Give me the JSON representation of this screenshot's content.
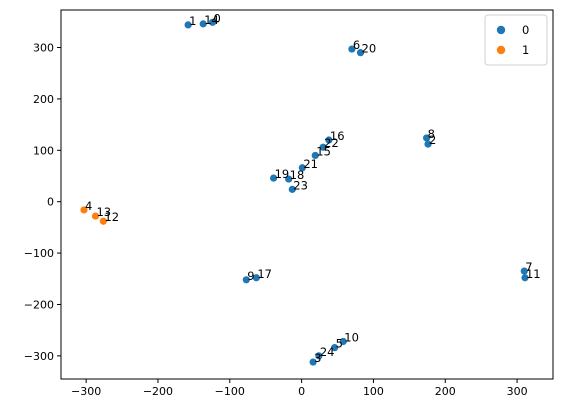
{
  "chart_data": {
    "type": "scatter",
    "title": "",
    "xlabel": "",
    "ylabel": "",
    "xlim": [
      -335,
      350
    ],
    "ylim": [
      -345,
      373
    ],
    "xticks": [
      -300,
      -200,
      -100,
      0,
      100,
      200,
      300
    ],
    "yticks": [
      -300,
      -200,
      -100,
      0,
      100,
      200,
      300
    ],
    "xtick_labels": [
      "−300",
      "−200",
      "−100",
      "0",
      "100",
      "200",
      "300"
    ],
    "ytick_labels": [
      "−300",
      "−200",
      "−100",
      "0",
      "100",
      "200",
      "300"
    ],
    "grid": false,
    "legend_position": "top-right",
    "series": [
      {
        "name": "0",
        "color": "#1f77b4",
        "points": [
          {
            "label": "0",
            "x": -124,
            "y": 349
          },
          {
            "label": "1",
            "x": -158,
            "y": 344
          },
          {
            "label": "14",
            "x": -137,
            "y": 346
          },
          {
            "label": "6",
            "x": 70,
            "y": 297
          },
          {
            "label": "20",
            "x": 82,
            "y": 290
          },
          {
            "label": "8",
            "x": 174,
            "y": 124
          },
          {
            "label": "2",
            "x": 176,
            "y": 112
          },
          {
            "label": "16",
            "x": 38,
            "y": 120
          },
          {
            "label": "22",
            "x": 30,
            "y": 106
          },
          {
            "label": "15",
            "x": 19,
            "y": 90
          },
          {
            "label": "21",
            "x": 1,
            "y": 66
          },
          {
            "label": "19",
            "x": -39,
            "y": 46
          },
          {
            "label": "18",
            "x": -18,
            "y": 44
          },
          {
            "label": "23",
            "x": -13,
            "y": 24
          },
          {
            "label": "7",
            "x": 310,
            "y": -135
          },
          {
            "label": "11",
            "x": 311,
            "y": -148
          },
          {
            "label": "9",
            "x": -77,
            "y": -152
          },
          {
            "label": "17",
            "x": -63,
            "y": -148
          },
          {
            "label": "10",
            "x": 58,
            "y": -272
          },
          {
            "label": "5",
            "x": 46,
            "y": -284
          },
          {
            "label": "24",
            "x": 24,
            "y": -300
          },
          {
            "label": "3",
            "x": 16,
            "y": -312
          }
        ]
      },
      {
        "name": "1",
        "color": "#ff7f0e",
        "points": [
          {
            "label": "4",
            "x": -303,
            "y": -16
          },
          {
            "label": "13",
            "x": -287,
            "y": -28
          },
          {
            "label": "12",
            "x": -276,
            "y": -38
          }
        ]
      }
    ]
  }
}
